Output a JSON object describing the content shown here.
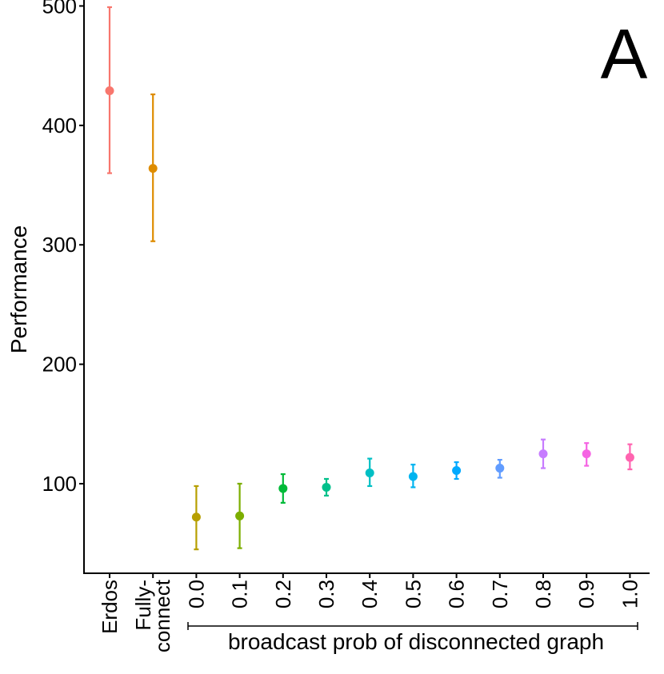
{
  "chart_data": {
    "type": "scatter",
    "panel_label": "A",
    "ylabel": "Performance",
    "group_label": "broadcast prob of disconnected graph",
    "ylim": [
      25,
      505
    ],
    "yticks": [
      100,
      200,
      300,
      400,
      500
    ],
    "categories": [
      {
        "label": "Erdos",
        "value": 429,
        "lower": 360,
        "upper": 499,
        "color": "#F8766D"
      },
      {
        "label": "Fully-connect",
        "label_lines": [
          "Fully-",
          "connect"
        ],
        "value": 364,
        "lower": 303,
        "upper": 426,
        "color": "#DE8C00"
      },
      {
        "label": "0.0",
        "value": 72,
        "lower": 45,
        "upper": 98,
        "color": "#B79F00"
      },
      {
        "label": "0.1",
        "value": 73,
        "lower": 46,
        "upper": 100,
        "color": "#7CAE00"
      },
      {
        "label": "0.2",
        "value": 96,
        "lower": 84,
        "upper": 108,
        "color": "#00BA38"
      },
      {
        "label": "0.3",
        "value": 97,
        "lower": 90,
        "upper": 104,
        "color": "#00C08B"
      },
      {
        "label": "0.4",
        "value": 109,
        "lower": 98,
        "upper": 121,
        "color": "#00BFC4"
      },
      {
        "label": "0.5",
        "value": 106,
        "lower": 97,
        "upper": 116,
        "color": "#00B4F0"
      },
      {
        "label": "0.6",
        "value": 111,
        "lower": 104,
        "upper": 118,
        "color": "#00A9FF"
      },
      {
        "label": "0.7",
        "value": 113,
        "lower": 105,
        "upper": 120,
        "color": "#619CFF"
      },
      {
        "label": "0.8",
        "value": 125,
        "lower": 113,
        "upper": 137,
        "color": "#C77CFF"
      },
      {
        "label": "0.9",
        "value": 125,
        "lower": 115,
        "upper": 134,
        "color": "#F564E3"
      },
      {
        "label": "1.0",
        "value": 122,
        "lower": 112,
        "upper": 133,
        "color": "#FF64B0"
      }
    ]
  }
}
